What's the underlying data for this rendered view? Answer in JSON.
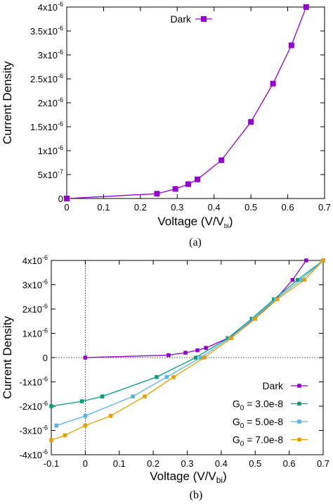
{
  "chart_data": [
    {
      "type": "line",
      "caption": "(a)",
      "xlabel": "Voltage (V/V",
      "xlabel_sub": "bi",
      "xlabel_close": ")",
      "ylabel": "Current Density",
      "xlim": [
        0,
        0.7
      ],
      "ylim": [
        0,
        4e-06
      ],
      "xticks": [
        "0",
        "0.1",
        "0.2",
        "0.3",
        "0.4",
        "0.5",
        "0.6",
        "0.7"
      ],
      "yticks": [
        {
          "base": "0",
          "exp": ""
        },
        {
          "base": "5x10",
          "exp": "-7"
        },
        {
          "base": "1x10",
          "exp": "-6"
        },
        {
          "base": "1.5x10",
          "exp": "-6"
        },
        {
          "base": "2x10",
          "exp": "-6"
        },
        {
          "base": "2.5x10",
          "exp": "-6"
        },
        {
          "base": "3x10",
          "exp": "-6"
        },
        {
          "base": "3.5x10",
          "exp": "-6"
        },
        {
          "base": "4x10",
          "exp": "-6"
        }
      ],
      "legend_position": "top-center",
      "series": [
        {
          "name": "Dark",
          "color": "#9400D3",
          "x": [
            0,
            0.245,
            0.295,
            0.33,
            0.355,
            0.42,
            0.5,
            0.56,
            0.61,
            0.65
          ],
          "y": [
            0,
            1e-07,
            2e-07,
            3e-07,
            4e-07,
            8e-07,
            1.6e-06,
            2.4e-06,
            3.2e-06,
            4e-06
          ]
        }
      ]
    },
    {
      "type": "line",
      "caption": "(b)",
      "xlabel": "Voltage (V/V",
      "xlabel_sub": "bi",
      "xlabel_close": ")",
      "ylabel": "Current Density",
      "xlim": [
        -0.1,
        0.7
      ],
      "ylim": [
        -4e-06,
        4e-06
      ],
      "xticks": [
        "-0.1",
        "0",
        "0.1",
        "0.2",
        "0.3",
        "0.4",
        "0.5",
        "0.6",
        "0.7"
      ],
      "yticks": [
        {
          "base": "-4x10",
          "exp": "-6"
        },
        {
          "base": "-3x10",
          "exp": "-6"
        },
        {
          "base": "-2x10",
          "exp": "-6"
        },
        {
          "base": "-1x10",
          "exp": "-6"
        },
        {
          "base": "0",
          "exp": ""
        },
        {
          "base": "1x10",
          "exp": "-6"
        },
        {
          "base": "2x10",
          "exp": "-6"
        },
        {
          "base": "3x10",
          "exp": "-6"
        },
        {
          "base": "4x10",
          "exp": "-6"
        }
      ],
      "zero_lines": "dotted",
      "legend_position": "bottom-right",
      "series": [
        {
          "name": "Dark",
          "color": "#9400D3",
          "x": [
            0,
            0.245,
            0.295,
            0.33,
            0.355,
            0.42,
            0.5,
            0.56,
            0.61,
            0.65
          ],
          "y": [
            0,
            1e-07,
            2e-07,
            3e-07,
            4e-07,
            8e-07,
            1.6e-06,
            2.4e-06,
            3.2e-06,
            4e-06
          ]
        },
        {
          "name": "G",
          "name_sub": "0",
          "name_rest": " = 3.0e-8",
          "color": "#009E73",
          "x": [
            -0.1,
            -0.01,
            0.05,
            0.21,
            0.325,
            0.42,
            0.49,
            0.555,
            0.625,
            0.7
          ],
          "y": [
            -2e-06,
            -1.8e-06,
            -1.6e-06,
            -8e-07,
            0.0,
            8e-07,
            1.6e-06,
            2.4e-06,
            3.2e-06,
            4e-06
          ]
        },
        {
          "name": "G",
          "name_sub": "0",
          "name_rest": " = 5.0e-8",
          "color": "#56B4E9",
          "x": [
            -0.085,
            0.0,
            0.14,
            0.24,
            0.34,
            0.425,
            0.495,
            0.56,
            0.635,
            0.7
          ],
          "y": [
            -2.8e-06,
            -2.4e-06,
            -1.6e-06,
            -8e-07,
            0.0,
            8e-07,
            1.6e-06,
            2.4e-06,
            3.2e-06,
            4e-06
          ]
        },
        {
          "name": "G",
          "name_sub": "0",
          "name_rest": " = 7.0e-8",
          "color": "#E69F00",
          "x": [
            -0.1,
            -0.06,
            0.0,
            0.075,
            0.175,
            0.26,
            0.35,
            0.43,
            0.5,
            0.565,
            0.645,
            0.7
          ],
          "y": [
            -3.4e-06,
            -3.2e-06,
            -2.8e-06,
            -2.4e-06,
            -1.6e-06,
            -8e-07,
            0.0,
            8e-07,
            1.6e-06,
            2.4e-06,
            3.2e-06,
            4e-06
          ]
        }
      ]
    }
  ]
}
